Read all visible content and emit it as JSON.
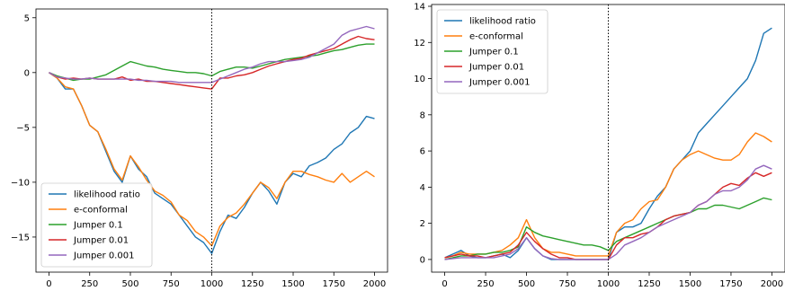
{
  "chart_data": [
    {
      "type": "line",
      "xlim": [
        -80,
        2080
      ],
      "ylim": [
        -18.2,
        5.8
      ],
      "xticks": [
        0,
        250,
        500,
        750,
        1000,
        1250,
        1500,
        1750,
        2000
      ],
      "xtick_labels": [
        "0",
        "250",
        "500",
        "750",
        "1000",
        "1250",
        "1500",
        "1750",
        "2000"
      ],
      "yticks": [
        5,
        0,
        -5,
        -10,
        -15
      ],
      "ytick_labels": [
        "5",
        "0",
        "−5",
        "−10",
        "−15"
      ],
      "vline_x": 1000,
      "legend_position": "lower-left",
      "series": [
        {
          "name": "likelihood ratio",
          "color": "#1f77b4",
          "x": [
            0,
            50,
            100,
            150,
            200,
            250,
            300,
            350,
            400,
            450,
            500,
            550,
            600,
            650,
            700,
            750,
            800,
            850,
            900,
            950,
            1000,
            1050,
            1100,
            1150,
            1200,
            1250,
            1300,
            1350,
            1400,
            1450,
            1500,
            1550,
            1600,
            1650,
            1700,
            1750,
            1800,
            1850,
            1900,
            1950,
            2000
          ],
          "y": [
            0,
            -0.5,
            -1.5,
            -1.5,
            -3.0,
            -4.8,
            -5.4,
            -7.2,
            -9.0,
            -10.0,
            -7.6,
            -8.8,
            -9.5,
            -11.0,
            -11.5,
            -12.0,
            -13.0,
            -14.0,
            -15.0,
            -15.5,
            -16.5,
            -14.5,
            -13.0,
            -13.3,
            -12.3,
            -11.0,
            -10.0,
            -10.8,
            -12.0,
            -10.0,
            -9.2,
            -9.5,
            -8.5,
            -8.2,
            -7.8,
            -7.0,
            -6.5,
            -5.5,
            -5.0,
            -4.0,
            -4.2
          ]
        },
        {
          "name": "e-conformal",
          "color": "#ff7f0e",
          "x": [
            0,
            50,
            100,
            150,
            200,
            250,
            300,
            350,
            400,
            450,
            500,
            550,
            600,
            650,
            700,
            750,
            800,
            850,
            900,
            950,
            1000,
            1050,
            1100,
            1150,
            1200,
            1250,
            1300,
            1350,
            1400,
            1450,
            1500,
            1550,
            1600,
            1650,
            1700,
            1750,
            1800,
            1850,
            1900,
            1950,
            2000
          ],
          "y": [
            0,
            -0.5,
            -1.3,
            -1.5,
            -3.0,
            -4.8,
            -5.4,
            -7.0,
            -8.8,
            -9.8,
            -7.6,
            -8.6,
            -9.8,
            -10.8,
            -11.2,
            -11.8,
            -13.0,
            -13.5,
            -14.5,
            -15.0,
            -15.8,
            -14.0,
            -13.2,
            -12.8,
            -12.0,
            -11.0,
            -10.0,
            -10.5,
            -11.5,
            -10.0,
            -9.0,
            -9.0,
            -9.3,
            -9.5,
            -9.8,
            -10.0,
            -9.2,
            -10.0,
            -9.5,
            -9.0,
            -9.5
          ]
        },
        {
          "name": "Jumper 0.1",
          "color": "#2ca02c",
          "x": [
            0,
            50,
            100,
            150,
            200,
            250,
            300,
            350,
            400,
            450,
            500,
            550,
            600,
            650,
            700,
            750,
            800,
            850,
            900,
            950,
            1000,
            1050,
            1100,
            1150,
            1200,
            1250,
            1300,
            1350,
            1400,
            1450,
            1500,
            1550,
            1600,
            1650,
            1700,
            1750,
            1800,
            1850,
            1900,
            1950,
            2000
          ],
          "y": [
            0,
            -0.3,
            -0.5,
            -0.7,
            -0.6,
            -0.6,
            -0.4,
            -0.2,
            0.2,
            0.6,
            1.0,
            0.8,
            0.6,
            0.5,
            0.3,
            0.2,
            0.1,
            0.0,
            0.0,
            -0.1,
            -0.3,
            0.1,
            0.3,
            0.5,
            0.5,
            0.4,
            0.6,
            0.8,
            1.0,
            1.2,
            1.3,
            1.4,
            1.5,
            1.6,
            1.8,
            2.0,
            2.1,
            2.3,
            2.5,
            2.6,
            2.6
          ]
        },
        {
          "name": "Jumper 0.01",
          "color": "#d62728",
          "x": [
            0,
            50,
            100,
            150,
            200,
            250,
            300,
            350,
            400,
            450,
            500,
            550,
            600,
            650,
            700,
            750,
            800,
            850,
            900,
            950,
            1000,
            1050,
            1100,
            1150,
            1200,
            1250,
            1300,
            1350,
            1400,
            1450,
            1500,
            1550,
            1600,
            1650,
            1700,
            1750,
            1800,
            1850,
            1900,
            1950,
            2000
          ],
          "y": [
            0,
            -0.4,
            -0.6,
            -0.5,
            -0.6,
            -0.5,
            -0.6,
            -0.6,
            -0.6,
            -0.4,
            -0.7,
            -0.6,
            -0.8,
            -0.8,
            -0.9,
            -1.0,
            -1.1,
            -1.2,
            -1.3,
            -1.4,
            -1.5,
            -0.5,
            -0.5,
            -0.3,
            -0.2,
            0.0,
            0.3,
            0.6,
            0.8,
            1.0,
            1.2,
            1.3,
            1.6,
            1.8,
            2.0,
            2.2,
            2.6,
            3.0,
            3.3,
            3.1,
            3.0
          ]
        },
        {
          "name": "Jumper 0.001",
          "color": "#9467bd",
          "x": [
            0,
            50,
            100,
            150,
            200,
            250,
            300,
            350,
            400,
            450,
            500,
            550,
            600,
            650,
            700,
            750,
            800,
            850,
            900,
            950,
            1000,
            1050,
            1100,
            1150,
            1200,
            1250,
            1300,
            1350,
            1400,
            1450,
            1500,
            1550,
            1600,
            1650,
            1700,
            1750,
            1800,
            1850,
            1900,
            1950,
            2000
          ],
          "y": [
            0,
            -0.4,
            -0.5,
            -0.6,
            -0.6,
            -0.5,
            -0.6,
            -0.6,
            -0.6,
            -0.6,
            -0.6,
            -0.7,
            -0.7,
            -0.8,
            -0.8,
            -0.8,
            -0.9,
            -0.9,
            -0.9,
            -0.9,
            -0.9,
            -0.6,
            -0.3,
            0.0,
            0.3,
            0.5,
            0.8,
            1.0,
            1.0,
            1.0,
            1.1,
            1.2,
            1.4,
            1.8,
            2.2,
            2.6,
            3.4,
            3.8,
            4.0,
            4.2,
            4.0
          ]
        }
      ]
    },
    {
      "type": "line",
      "xlim": [
        -80,
        2080
      ],
      "ylim": [
        -0.7,
        14.1
      ],
      "xticks": [
        0,
        250,
        500,
        750,
        1000,
        1250,
        1500,
        1750,
        2000
      ],
      "xtick_labels": [
        "0",
        "250",
        "500",
        "750",
        "1000",
        "1250",
        "1500",
        "1750",
        "2000"
      ],
      "yticks": [
        0,
        2,
        4,
        6,
        8,
        10,
        12,
        14
      ],
      "ytick_labels": [
        "0",
        "2",
        "4",
        "6",
        "8",
        "10",
        "12",
        "14"
      ],
      "vline_x": 1000,
      "legend_position": "upper-left",
      "series": [
        {
          "name": "likelihood ratio",
          "color": "#1f77b4",
          "x": [
            0,
            50,
            100,
            150,
            200,
            250,
            300,
            350,
            400,
            450,
            500,
            550,
            600,
            650,
            700,
            750,
            800,
            850,
            900,
            950,
            1000,
            1050,
            1100,
            1150,
            1200,
            1250,
            1300,
            1350,
            1400,
            1450,
            1500,
            1550,
            1600,
            1650,
            1700,
            1750,
            1800,
            1850,
            1900,
            1950,
            2000
          ],
          "y": [
            0.1,
            0.3,
            0.5,
            0.2,
            0.1,
            0.1,
            0.2,
            0.3,
            0.1,
            0.5,
            1.2,
            0.6,
            0.2,
            0.0,
            0.0,
            0.0,
            0.0,
            0.0,
            0.0,
            0.0,
            0.0,
            1.5,
            1.8,
            1.8,
            2.0,
            2.8,
            3.5,
            4.0,
            5.0,
            5.5,
            6.0,
            7.0,
            7.5,
            8.0,
            8.5,
            9.0,
            9.5,
            10.0,
            11.0,
            12.5,
            12.8
          ]
        },
        {
          "name": "e-conformal",
          "color": "#ff7f0e",
          "x": [
            0,
            50,
            100,
            150,
            200,
            250,
            300,
            350,
            400,
            450,
            500,
            550,
            600,
            650,
            700,
            750,
            800,
            850,
            900,
            950,
            1000,
            1050,
            1100,
            1150,
            1200,
            1250,
            1300,
            1350,
            1400,
            1450,
            1500,
            1550,
            1600,
            1650,
            1700,
            1750,
            1800,
            1850,
            1900,
            1950,
            2000
          ],
          "y": [
            0.1,
            0.2,
            0.4,
            0.3,
            0.3,
            0.3,
            0.4,
            0.5,
            0.8,
            1.2,
            2.2,
            1.2,
            0.6,
            0.4,
            0.4,
            0.3,
            0.2,
            0.2,
            0.2,
            0.2,
            0.2,
            1.5,
            2.0,
            2.2,
            2.8,
            3.2,
            3.3,
            4.0,
            5.0,
            5.5,
            5.8,
            6.0,
            5.8,
            5.6,
            5.5,
            5.5,
            5.8,
            6.5,
            7.0,
            6.8,
            6.5
          ]
        },
        {
          "name": "Jumper 0.1",
          "color": "#2ca02c",
          "x": [
            0,
            50,
            100,
            150,
            200,
            250,
            300,
            350,
            400,
            450,
            500,
            550,
            600,
            650,
            700,
            750,
            800,
            850,
            900,
            950,
            1000,
            1050,
            1100,
            1150,
            1200,
            1250,
            1300,
            1350,
            1400,
            1450,
            1500,
            1550,
            1600,
            1650,
            1700,
            1750,
            1800,
            1850,
            1900,
            1950,
            2000
          ],
          "y": [
            0.0,
            0.1,
            0.2,
            0.2,
            0.3,
            0.3,
            0.4,
            0.4,
            0.5,
            0.7,
            1.8,
            1.5,
            1.3,
            1.2,
            1.1,
            1.0,
            0.9,
            0.8,
            0.8,
            0.7,
            0.5,
            1.0,
            1.2,
            1.4,
            1.6,
            1.8,
            2.0,
            2.2,
            2.4,
            2.5,
            2.6,
            2.8,
            2.8,
            3.0,
            3.0,
            2.9,
            2.8,
            3.0,
            3.2,
            3.4,
            3.3
          ]
        },
        {
          "name": "Jumper 0.01",
          "color": "#d62728",
          "x": [
            0,
            50,
            100,
            150,
            200,
            250,
            300,
            350,
            400,
            450,
            500,
            550,
            600,
            650,
            700,
            750,
            800,
            850,
            900,
            950,
            1000,
            1050,
            1100,
            1150,
            1200,
            1250,
            1300,
            1350,
            1400,
            1450,
            1500,
            1550,
            1600,
            1650,
            1700,
            1750,
            1800,
            1850,
            1900,
            1950,
            2000
          ],
          "y": [
            0.1,
            0.2,
            0.3,
            0.2,
            0.2,
            0.1,
            0.2,
            0.3,
            0.4,
            0.8,
            1.5,
            1.0,
            0.6,
            0.3,
            0.1,
            0.1,
            0.0,
            0.0,
            0.0,
            0.0,
            0.0,
            0.8,
            1.2,
            1.2,
            1.4,
            1.5,
            1.8,
            2.2,
            2.4,
            2.5,
            2.6,
            3.0,
            3.2,
            3.6,
            4.0,
            4.2,
            4.1,
            4.5,
            4.8,
            4.6,
            4.8
          ]
        },
        {
          "name": "Jumper 0.001",
          "color": "#9467bd",
          "x": [
            0,
            50,
            100,
            150,
            200,
            250,
            300,
            350,
            400,
            450,
            500,
            550,
            600,
            650,
            700,
            750,
            800,
            850,
            900,
            950,
            1000,
            1050,
            1100,
            1150,
            1200,
            1250,
            1300,
            1350,
            1400,
            1450,
            1500,
            1550,
            1600,
            1650,
            1700,
            1750,
            1800,
            1850,
            1900,
            1950,
            2000
          ],
          "y": [
            0.0,
            0.05,
            0.1,
            0.1,
            0.1,
            0.1,
            0.1,
            0.2,
            0.3,
            0.6,
            1.2,
            0.6,
            0.2,
            0.05,
            0.0,
            0.0,
            0.0,
            0.0,
            0.0,
            0.0,
            0.0,
            0.3,
            0.8,
            1.0,
            1.2,
            1.5,
            1.8,
            2.0,
            2.2,
            2.4,
            2.6,
            3.0,
            3.2,
            3.6,
            3.8,
            3.8,
            4.0,
            4.4,
            5.0,
            5.2,
            5.0
          ]
        }
      ]
    }
  ]
}
